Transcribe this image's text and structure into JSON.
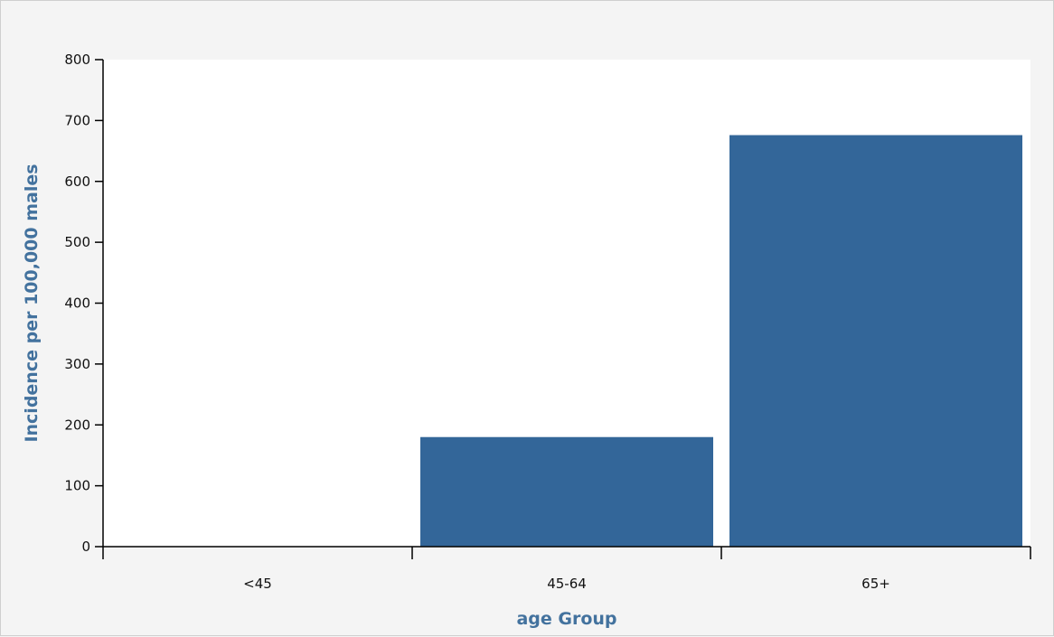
{
  "chart_data": {
    "type": "bar",
    "categories": [
      "<45",
      "45-64",
      "65+"
    ],
    "values": [
      0,
      180,
      676
    ],
    "xlabel": "age Group",
    "ylabel": "Incidence per 100,000 males",
    "ylim": [
      0,
      800
    ],
    "yticks": [
      0,
      100,
      200,
      300,
      400,
      500,
      600,
      700,
      800
    ],
    "grid": false,
    "colors": {
      "bar": "#336699",
      "axis_title": "#43729e",
      "plot_background": "#ffffff",
      "page_background": "#f4f4f4"
    }
  }
}
